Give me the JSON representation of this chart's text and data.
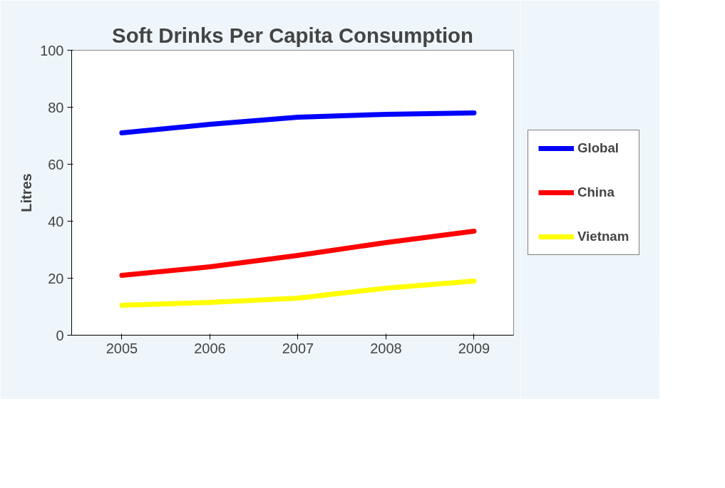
{
  "chart_data": {
    "type": "line",
    "title": "Soft Drinks Per Capita Consumption",
    "ylabel": "Litres",
    "categories": [
      "2005",
      "2006",
      "2007",
      "2008",
      "2009"
    ],
    "series": [
      {
        "name": "Global",
        "color": "#0000ff",
        "values": [
          71,
          74,
          76.5,
          77.5,
          78
        ]
      },
      {
        "name": "China",
        "color": "#ff0000",
        "values": [
          21,
          24,
          28,
          32.5,
          36.5
        ]
      },
      {
        "name": "Vietnam",
        "color": "#ffff00",
        "values": [
          10.5,
          11.5,
          13,
          16.5,
          19
        ]
      }
    ],
    "ylim": [
      0,
      100
    ],
    "yticks": [
      0,
      20,
      40,
      60,
      80,
      100
    ],
    "grid": false,
    "legend": "right",
    "marker": "none",
    "line_style": "solid"
  }
}
